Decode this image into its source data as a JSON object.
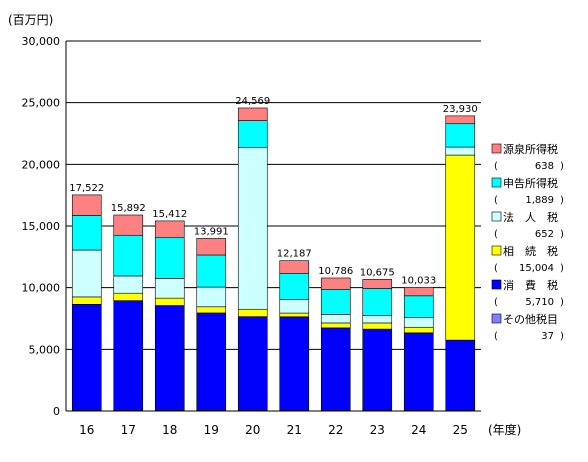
{
  "chart_data": {
    "type": "bar",
    "stacked": true,
    "unit_label": "(百万円)",
    "xlabel": "(年度)",
    "ylim": [
      0,
      30000
    ],
    "yticks": [
      0,
      5000,
      10000,
      15000,
      20000,
      25000,
      30000
    ],
    "ytick_labels": [
      "0",
      "5,000",
      "10,000",
      "15,000",
      "20,000",
      "25,000",
      "30,000"
    ],
    "grid": true,
    "legend_position": "right",
    "categories": [
      "16",
      "17",
      "18",
      "19",
      "20",
      "21",
      "22",
      "23",
      "24",
      "25"
    ],
    "totals": [
      17522,
      15892,
      15412,
      13991,
      24569,
      12187,
      10786,
      10675,
      10033,
      23930
    ],
    "total_labels": [
      "17,522",
      "15,892",
      "15,412",
      "13,991",
      "24,569",
      "12,187",
      "10,786",
      "10,675",
      "10,033",
      "23,930"
    ],
    "series": [
      {
        "name": "その他税目",
        "value_label": "37",
        "color": "#8080ff",
        "values": [
          50,
          50,
          50,
          50,
          50,
          40,
          40,
          40,
          40,
          37
        ]
      },
      {
        "name": "消　費　税",
        "value_label": "5,710",
        "color": "#0000ff",
        "values": [
          8600,
          8900,
          8500,
          7900,
          7600,
          7600,
          6700,
          6600,
          6300,
          5710
        ]
      },
      {
        "name": "相　続　税",
        "value_label": "15,004",
        "color": "#ffff00",
        "values": [
          600,
          600,
          600,
          500,
          600,
          300,
          400,
          500,
          450,
          15004
        ]
      },
      {
        "name": "法　人　税",
        "value_label": "652",
        "color": "#ccffff",
        "values": [
          3800,
          1400,
          1600,
          1600,
          13100,
          1100,
          700,
          600,
          800,
          652
        ]
      },
      {
        "name": "申告所得税",
        "value_label": "1,889",
        "color": "#00ffff",
        "values": [
          2800,
          3300,
          3300,
          2600,
          2200,
          2100,
          2000,
          2200,
          1750,
          1889
        ]
      },
      {
        "name": "源泉所得税",
        "value_label": "638",
        "color": "#ff8080",
        "values": [
          1672,
          1642,
          1362,
          1341,
          1019,
          1047,
          946,
          735,
          693,
          638
        ]
      }
    ]
  }
}
